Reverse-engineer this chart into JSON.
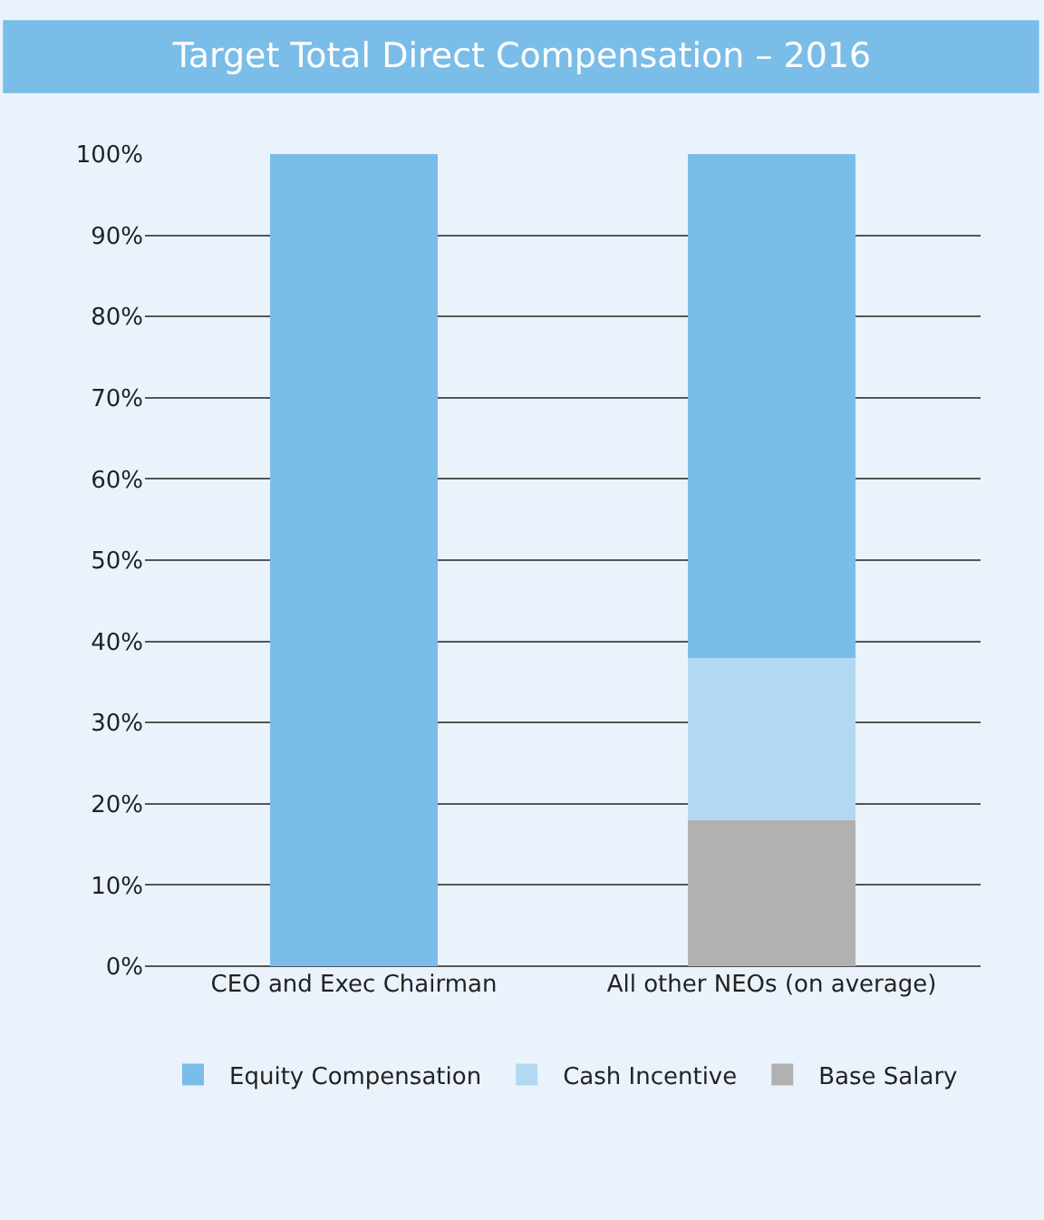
{
  "chart_data": {
    "type": "bar",
    "title": "Target Total Direct Compensation – 2016",
    "categories": [
      "CEO and Exec Chairman",
      "All other NEOs (on average)"
    ],
    "stacked": true,
    "series": [
      {
        "name": "Base Salary",
        "color": "#b1b1b1",
        "values": [
          0,
          18
        ]
      },
      {
        "name": "Cash Incentive",
        "color": "#b3d9f2",
        "values": [
          0,
          20
        ]
      },
      {
        "name": "Equity Compensation",
        "color": "#7abde8",
        "values": [
          100,
          62
        ]
      }
    ],
    "ylim": [
      0,
      100
    ],
    "yticks": [
      {
        "value": 0,
        "label": "0%"
      },
      {
        "value": 10,
        "label": "10%"
      },
      {
        "value": 20,
        "label": "20%"
      },
      {
        "value": 30,
        "label": "30%"
      },
      {
        "value": 40,
        "label": "40%"
      },
      {
        "value": 50,
        "label": "50%"
      },
      {
        "value": 60,
        "label": "60%"
      },
      {
        "value": 70,
        "label": "70%"
      },
      {
        "value": 80,
        "label": "80%"
      },
      {
        "value": 90,
        "label": "90%"
      },
      {
        "value": 100,
        "label": "100%"
      }
    ],
    "grid": "y",
    "legend": "bottom"
  }
}
